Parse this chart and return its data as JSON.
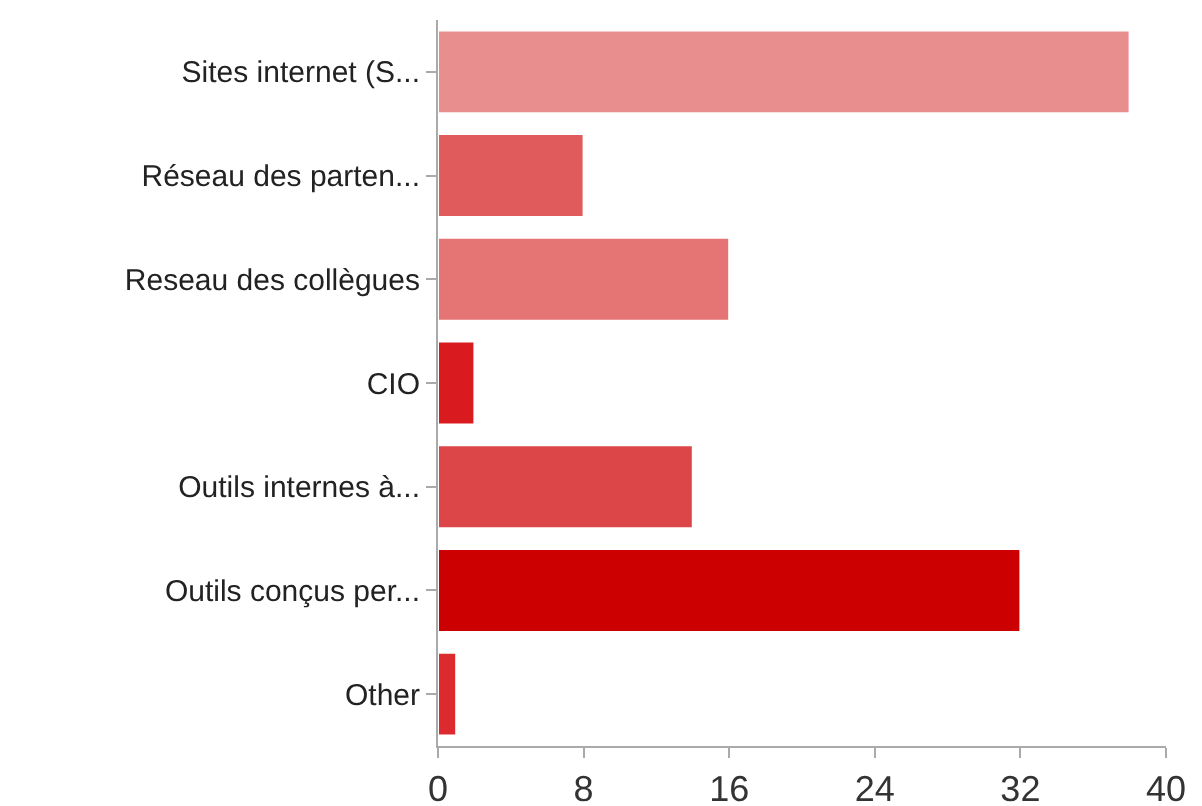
{
  "chart_data": {
    "type": "bar",
    "orientation": "horizontal",
    "categories": [
      "Sites internet (S...",
      "Réseau des parten...",
      "Reseau des collègues",
      "CIO",
      "Outils internes à...",
      "Outils conçus per...",
      "Other"
    ],
    "values": [
      38,
      8,
      16,
      2,
      14,
      32,
      1
    ],
    "colors": [
      "#e88e8e",
      "#e05c5c",
      "#e57474",
      "#d91a1e",
      "#dc4648",
      "#cc0000",
      "#dd2a2e"
    ],
    "xlim": [
      0,
      40
    ],
    "xticks": [
      0,
      8,
      16,
      24,
      32,
      40
    ],
    "grid": false
  }
}
